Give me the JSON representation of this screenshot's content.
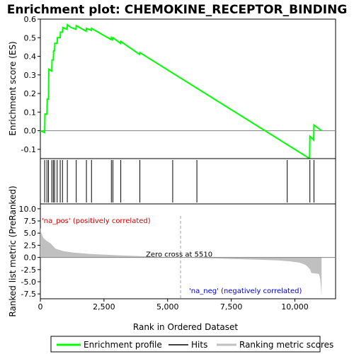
{
  "chart_data": {
    "type": "line",
    "title": "Enrichment plot: CHEMOKINE_RECEPTOR_BINDING",
    "top_panel": {
      "ylabel": "Enrichment score (ES)",
      "ylim": [
        -0.15,
        0.6
      ],
      "yticks": [
        -0.1,
        0.0,
        0.1,
        0.2,
        0.3,
        0.4,
        0.5,
        0.6
      ],
      "ytick_labels": [
        "-0.1",
        "0.0",
        "0.1",
        "0.2",
        "0.3",
        "0.4",
        "0.5",
        "0.6"
      ],
      "series": [
        {
          "name": "Enrichment profile",
          "color": "#00ff00",
          "x": [
            0,
            170,
            180,
            260,
            270,
            320,
            330,
            450,
            460,
            510,
            520,
            560,
            570,
            660,
            670,
            780,
            790,
            870,
            880,
            1050,
            1060,
            1200,
            1400,
            1410,
            1800,
            1810,
            2000,
            2010,
            2780,
            2790,
            2840,
            2850,
            3150,
            3160,
            3900,
            3910,
            10580,
            10590,
            10740,
            10750,
            11050
          ],
          "y": [
            0.0,
            -0.01,
            0.09,
            0.09,
            0.17,
            0.17,
            0.33,
            0.32,
            0.38,
            0.38,
            0.43,
            0.43,
            0.47,
            0.47,
            0.5,
            0.5,
            0.53,
            0.53,
            0.555,
            0.545,
            0.57,
            0.555,
            0.545,
            0.565,
            0.535,
            0.55,
            0.54,
            0.55,
            0.49,
            0.5,
            0.49,
            0.5,
            0.47,
            0.48,
            0.41,
            0.42,
            -0.15,
            -0.03,
            -0.05,
            0.03,
            0.0
          ]
        }
      ]
    },
    "hits": {
      "name": "Hits",
      "color": "#000000",
      "x": [
        170,
        260,
        320,
        450,
        510,
        560,
        660,
        780,
        870,
        1060,
        1410,
        1810,
        2010,
        2790,
        2850,
        3160,
        3910,
        5200,
        6150,
        9700,
        10590,
        10750
      ]
    },
    "bottom_panel": {
      "ylabel": "Ranked list metric (PreRanked)",
      "xlabel": "Rank in Ordered Dataset",
      "ylim": [
        -8.5,
        11
      ],
      "yticks": [
        -7.5,
        -5.0,
        -2.5,
        0.0,
        2.5,
        5.0,
        7.5,
        10.0
      ],
      "ytick_labels": [
        "-7.5",
        "-5.0",
        "-2.5",
        "0.0",
        "2.5",
        "5.0",
        "7.5",
        "10.0"
      ],
      "xlim": [
        0,
        11600
      ],
      "xticks": [
        0,
        2500,
        5000,
        7500,
        10000
      ],
      "xtick_labels": [
        "0",
        "2,500",
        "5,000",
        "7,500",
        "10,000"
      ],
      "series": [
        {
          "name": "Ranking metric scores",
          "color": "#c0c0c0",
          "x": [
            0,
            40,
            120,
            250,
            400,
            600,
            900,
            1300,
            2000,
            3000,
            4000,
            5000,
            5510,
            6500,
            7500,
            8500,
            9300,
            9800,
            10200,
            10400,
            10500,
            10600,
            10650,
            10950,
            11000,
            11050
          ],
          "y": [
            6.1,
            5.0,
            4.0,
            3.4,
            2.9,
            1.8,
            1.3,
            1.0,
            0.7,
            0.45,
            0.25,
            0.1,
            0.0,
            -0.15,
            -0.3,
            -0.45,
            -0.6,
            -0.8,
            -1.1,
            -1.5,
            -1.9,
            -2.5,
            -3.2,
            -3.4,
            -4.5,
            -7.9
          ]
        }
      ],
      "zero_cross_label": "Zero cross at 5510",
      "zero_cross_x": 5510,
      "pos_label": "'na_pos' (positively correlated)",
      "neg_label": "'na_neg' (negatively correlated)"
    },
    "color_bar": {
      "x_end": 11050,
      "segments": [
        {
          "x0": 0,
          "x1": 1500,
          "color": "#ff1010"
        },
        {
          "x0": 1500,
          "x1": 2400,
          "color": "#ff4a5a"
        },
        {
          "x0": 2400,
          "x1": 3700,
          "color": "#ff86a8"
        },
        {
          "x0": 3700,
          "x1": 5500,
          "color": "#ffbfe0"
        },
        {
          "x0": 5500,
          "x1": 7450,
          "color": "#dcd6f8"
        },
        {
          "x0": 7450,
          "x1": 8750,
          "color": "#b8b4f2"
        },
        {
          "x0": 8750,
          "x1": 9550,
          "color": "#7e7cee"
        },
        {
          "x0": 9550,
          "x1": 10450,
          "color": "#4a44e4"
        },
        {
          "x0": 10450,
          "x1": 11050,
          "color": "#1808c0"
        }
      ]
    },
    "legend": {
      "items": [
        {
          "label": "Enrichment profile",
          "color": "#00ff00"
        },
        {
          "label": "Hits",
          "color": "#000000"
        },
        {
          "label": "Ranking metric scores",
          "color": "#c0c0c0"
        }
      ]
    },
    "grid": false
  }
}
